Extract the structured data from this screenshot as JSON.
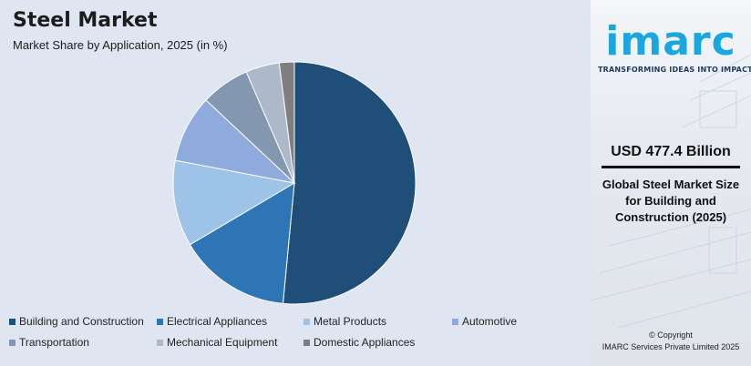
{
  "header": {
    "title": "Steel Market",
    "subtitle": "Market Share by Application, 2025 (in %)"
  },
  "chart_data": {
    "type": "pie",
    "title": "Steel Market",
    "subtitle": "Market Share by Application, 2025 (in %)",
    "start_angle_deg": 0,
    "direction": "clockwise",
    "slices": [
      {
        "label": "Building and Construction",
        "value": 51.5,
        "color": "#1f4e79"
      },
      {
        "label": "Electrical Appliances",
        "value": 15.0,
        "color": "#2e75b6"
      },
      {
        "label": "Metal Products",
        "value": 11.5,
        "color": "#9dc3e6"
      },
      {
        "label": "Automotive",
        "value": 9.0,
        "color": "#8faadc"
      },
      {
        "label": "Transportation",
        "value": 6.5,
        "color": "#8497b0"
      },
      {
        "label": "Mechanical Equipment",
        "value": 4.5,
        "color": "#adb9ca"
      },
      {
        "label": "Domestic Appliances",
        "value": 2.0,
        "color": "#7f7f7f"
      }
    ],
    "legend_position": "bottom"
  },
  "sidebar": {
    "brand": "imarc",
    "tagline": "TRANSFORMING IDEAS INTO IMPACT",
    "stat_value": "USD 477.4 Billion",
    "stat_description": "Global Steel Market Size for Building and Construction (2025)",
    "copyright_line1": "© Copyright",
    "copyright_line2": "IMARC Services Private Limited 2025",
    "brand_color": "#1aa7df"
  }
}
